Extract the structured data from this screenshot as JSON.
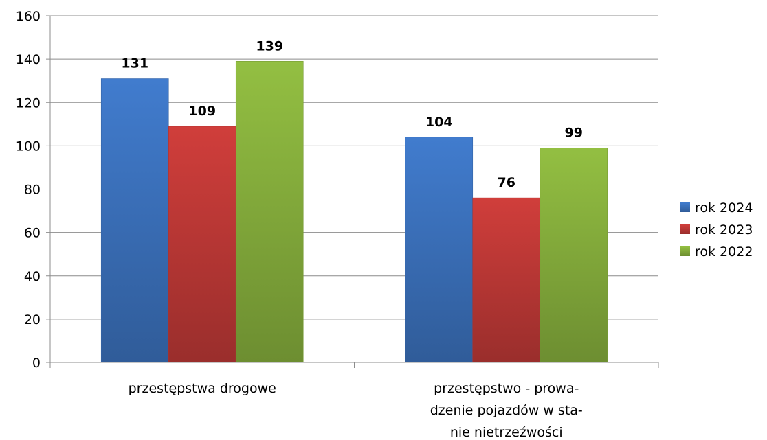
{
  "chart_data": {
    "type": "bar",
    "title": "",
    "xlabel": "",
    "ylabel": "",
    "ylim": [
      0,
      160
    ],
    "yticks": [
      0,
      20,
      40,
      60,
      80,
      100,
      120,
      140,
      160
    ],
    "grid": true,
    "legend_position": "right",
    "categories": [
      [
        "przestępstwa drogowe"
      ],
      [
        "przestępstwo - prowa-",
        "dzenie pojazdów w sta-",
        "nie nietrzeźwości"
      ]
    ],
    "series": [
      {
        "name": "rok 2024",
        "color": "#3e76c4",
        "values": [
          131,
          104
        ]
      },
      {
        "name": "rok 2023",
        "color": "#c63b38",
        "values": [
          109,
          76
        ]
      },
      {
        "name": "rok 2022",
        "color": "#8cb63f",
        "values": [
          139,
          99
        ]
      }
    ]
  }
}
